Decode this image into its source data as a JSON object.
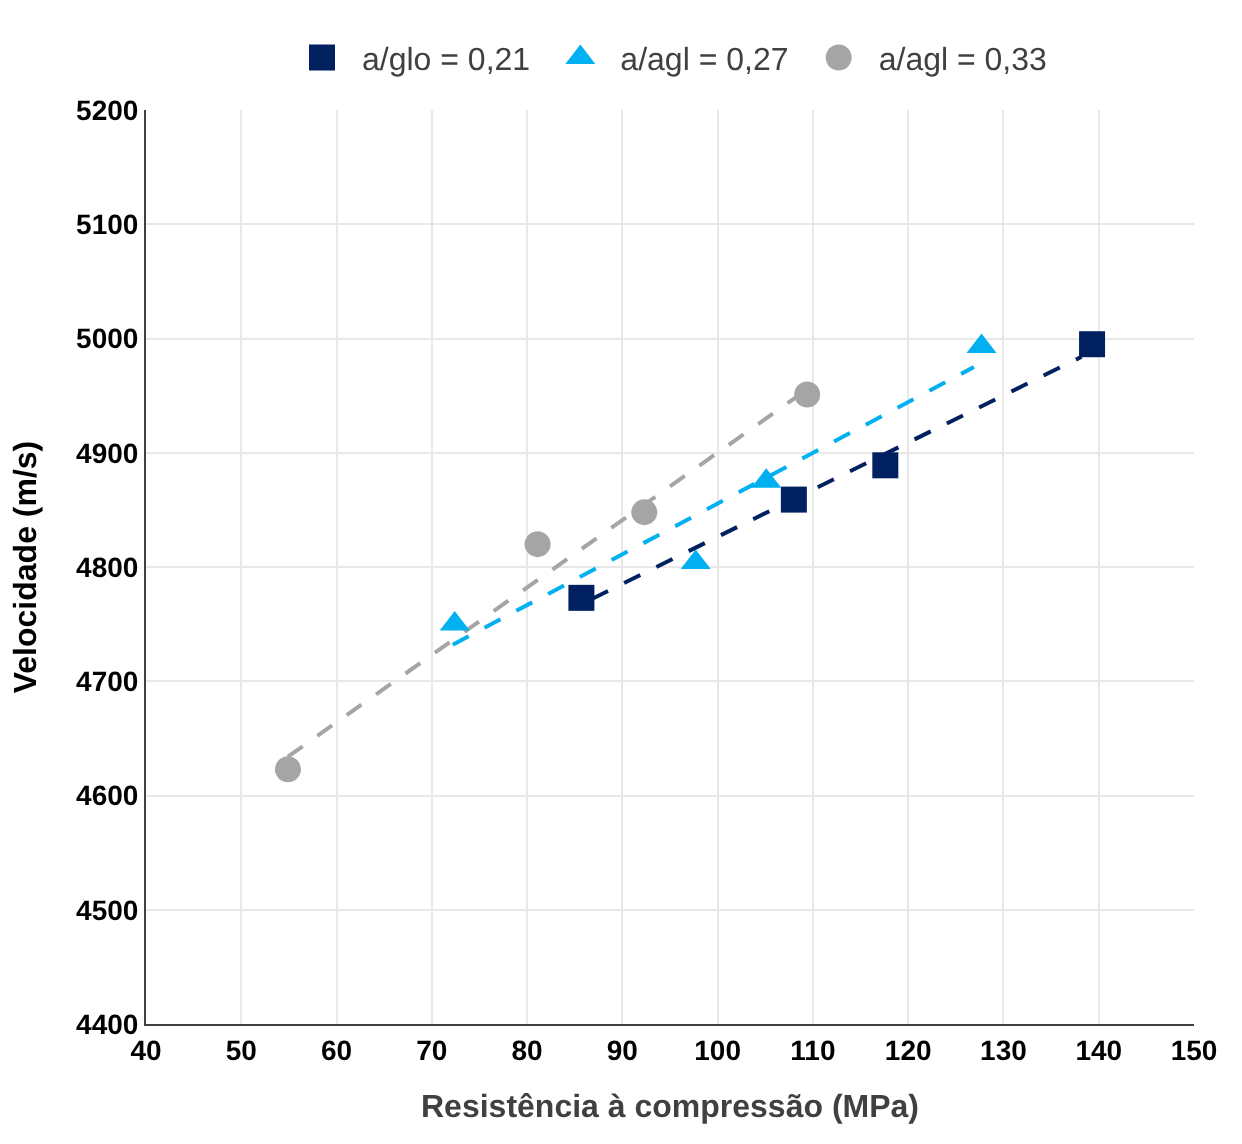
{
  "chart_data": {
    "type": "scatter",
    "xlabel": "Resistência à compressão (MPa)",
    "ylabel": "Velocidade (m/s)",
    "xlim": [
      40,
      150
    ],
    "xticks": [
      40,
      50,
      60,
      70,
      80,
      90,
      100,
      110,
      120,
      130,
      140,
      150
    ],
    "ylim": [
      4400,
      5200
    ],
    "yticks": [
      4400,
      4500,
      4600,
      4700,
      4800,
      4900,
      5000,
      5100,
      5200
    ],
    "grid": true,
    "legend": "top",
    "series": [
      {
        "name": "a/glo = 0,21",
        "color": "#002060",
        "marker": "square",
        "x": [
          85.7,
          108.0,
          117.6,
          139.3
        ],
        "values": [
          4773,
          4859,
          4889,
          4995
        ]
      },
      {
        "name": "a/agl = 0,27",
        "color": "#00b0f0",
        "marker": "triangle",
        "x": [
          72.4,
          97.7,
          105.1,
          127.7
        ],
        "values": [
          4750,
          4804,
          4875,
          4993
        ]
      },
      {
        "name": "a/agl = 0,33",
        "color": "#a5a5a5",
        "marker": "circle",
        "x": [
          54.9,
          81.1,
          92.3,
          109.4
        ],
        "values": [
          4623,
          4820,
          4848,
          4951
        ]
      },
      {
        "type": "line",
        "color": "#002060",
        "line_style": "dashed",
        "x": [
          86.8,
          138.2
        ],
        "values": [
          4772,
          4984
        ]
      },
      {
        "type": "line",
        "color": "#00b0f0",
        "line_style": "dashed",
        "x": [
          72.2,
          126.9
        ],
        "values": [
          4732,
          4975
        ]
      },
      {
        "type": "line",
        "color": "#a5a5a5",
        "line_style": "dashed",
        "x": [
          54.9,
          108.3
        ],
        "values": [
          4634,
          4949
        ]
      }
    ]
  }
}
